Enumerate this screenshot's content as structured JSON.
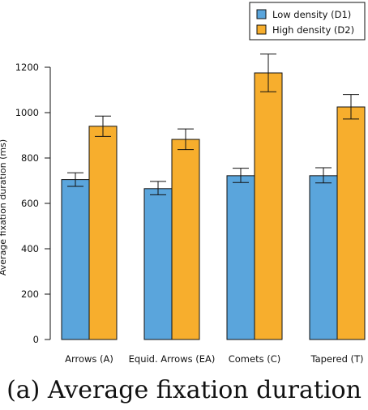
{
  "caption": "(a)  Average fixation duration",
  "chart_data": {
    "type": "bar",
    "title": "",
    "xlabel": "",
    "ylabel": "Average fixation duration (ms)",
    "ylim": [
      0,
      1300
    ],
    "yticks": [
      0,
      200,
      400,
      600,
      800,
      1000,
      1200
    ],
    "categories": [
      "Arrows (A)",
      "Equid. Arrows (EA)",
      "Comets (C)",
      "Tapered (T)"
    ],
    "legend_position": "top-right",
    "grid": false,
    "error_bars": true,
    "series": [
      {
        "name": "Low density  (D1)",
        "color": "#5aa5dc",
        "values": [
          705,
          665,
          722,
          722
        ],
        "error_low": [
          675,
          638,
          692,
          690
        ],
        "error_high": [
          735,
          697,
          755,
          757
        ]
      },
      {
        "name": "High density (D2)",
        "color": "#f7ae2d",
        "values": [
          940,
          882,
          1175,
          1025
        ],
        "error_low": [
          895,
          837,
          1092,
          972
        ],
        "error_high": [
          985,
          928,
          1258,
          1080
        ]
      }
    ]
  }
}
